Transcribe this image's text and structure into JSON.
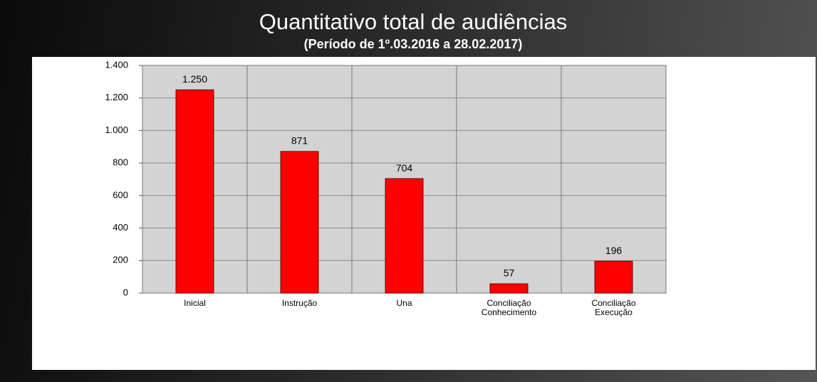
{
  "chart_data": {
    "type": "bar",
    "title": "Quantitativo total de audiências",
    "subtitle": "(Período de 1º.03.2016  a  28.02.2017)",
    "categories": [
      "Inicial",
      "Instrução",
      "Una",
      "Conciliação\nConhecimento",
      "Conciliação\nExecução"
    ],
    "values": [
      1250,
      871,
      704,
      57,
      196
    ],
    "value_labels": [
      "1.250",
      "871",
      "704",
      "57",
      "196"
    ],
    "color": "#ff0000",
    "ylim": [
      0,
      1400
    ],
    "yticks": [
      0,
      200,
      400,
      600,
      800,
      {
        "value": 1000,
        "label": "1.000"
      },
      {
        "value": 1200,
        "label": "1.200"
      },
      {
        "value": 1400,
        "label": "1.400"
      }
    ],
    "grid": true
  }
}
